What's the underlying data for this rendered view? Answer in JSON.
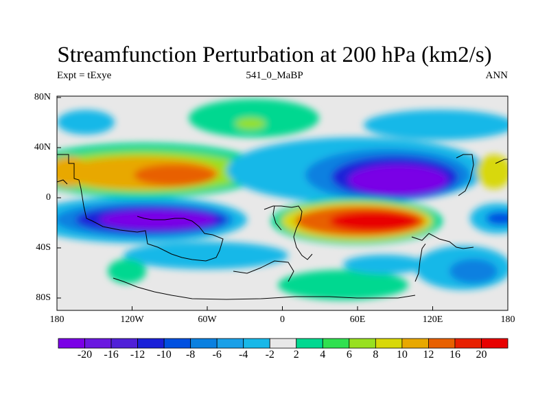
{
  "title": "Streamfunction Perturbation at 200 hPa (km2/s)",
  "subtitle_left": "Expt = tExye",
  "subtitle_center": "541_0_MaBP",
  "subtitle_right": "ANN",
  "axes": {
    "x_ticks": [
      "180",
      "120W",
      "60W",
      "0",
      "60E",
      "120E",
      "180"
    ],
    "y_ticks": [
      "80N",
      "40N",
      "0",
      "40S",
      "80S"
    ]
  },
  "colorbar": {
    "labels": [
      "-20",
      "-16",
      "-12",
      "-10",
      "-8",
      "-6",
      "-4",
      "-2",
      "2",
      "4",
      "6",
      "8",
      "10",
      "12",
      "16",
      "20"
    ],
    "colors": [
      "#7a00e6",
      "#6a18e0",
      "#5020d8",
      "#1a20d8",
      "#0050e0",
      "#0a80e0",
      "#1aa0e8",
      "#18b8e8",
      "#e8e8e8",
      "#00d890",
      "#30e050",
      "#98e020",
      "#d8d808",
      "#e8a800",
      "#e86000",
      "#e82000",
      "#e80000"
    ]
  },
  "colors": {
    "background": "#e8e8e8",
    "frame": "#000000"
  }
}
